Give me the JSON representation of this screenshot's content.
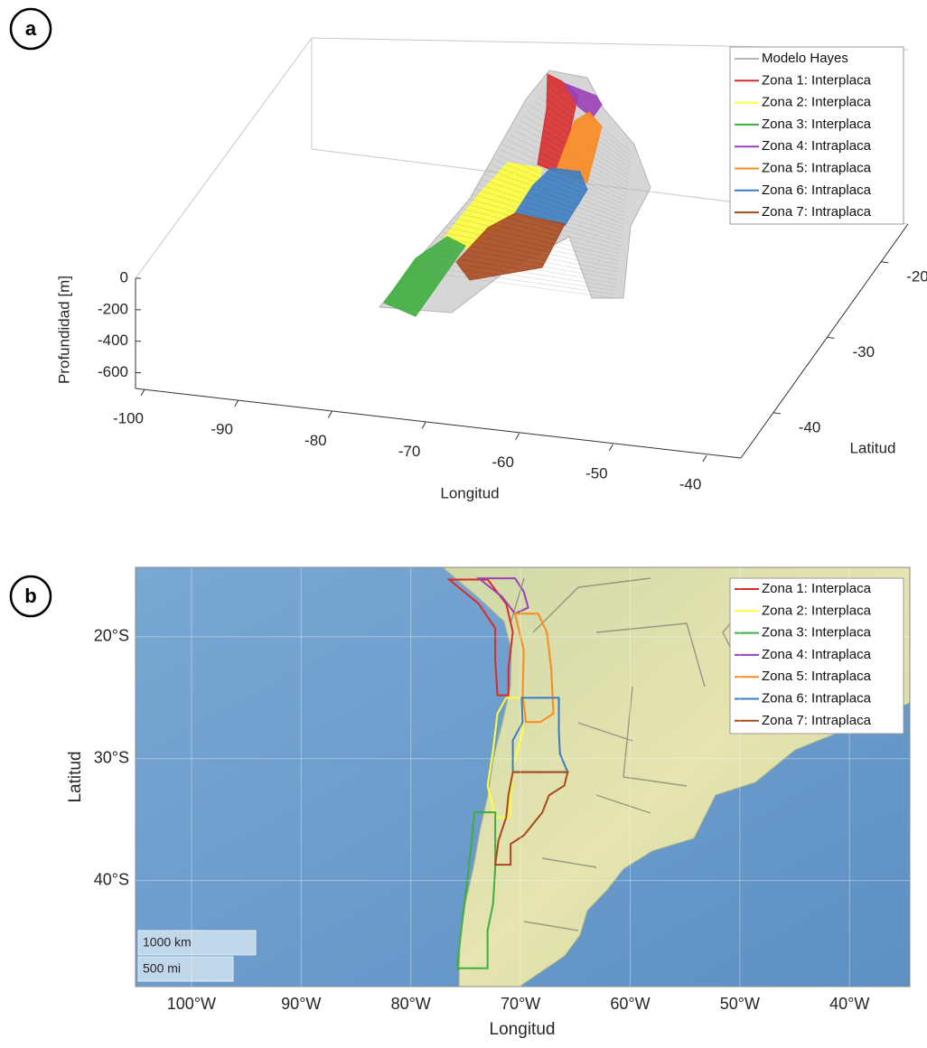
{
  "chart_data": [
    {
      "type": "surface3d",
      "panel": "a",
      "xlabel": "Longitud",
      "ylabel": "Latitud",
      "zlabel": "Profundidad [m]",
      "xlim": [
        -100,
        -40
      ],
      "xticks": [
        -100,
        -90,
        -80,
        -70,
        -60,
        -50,
        -40
      ],
      "ylim": [
        -46,
        -15
      ],
      "yticks": [
        -40,
        -30,
        -20
      ],
      "zlim": [
        -700,
        0
      ],
      "zticks": [
        0,
        -200,
        -400,
        -600
      ],
      "legend": "upper right",
      "series": [
        {
          "name": "Modelo Hayes",
          "color": "#b4b4b4"
        },
        {
          "name": "Zona 1: Interplaca",
          "color": "#d92b2b"
        },
        {
          "name": "Zona 2: Interplaca",
          "color": "#ffff3a"
        },
        {
          "name": "Zona 3: Interplaca",
          "color": "#3fae3f"
        },
        {
          "name": "Zona 4: Intraplaca",
          "color": "#9a40b8"
        },
        {
          "name": "Zona 5: Intraplaca",
          "color": "#ff8a1c"
        },
        {
          "name": "Zona 6: Intraplaca",
          "color": "#3a7cc2"
        },
        {
          "name": "Zona 7: Intraplaca",
          "color": "#a8481c"
        }
      ]
    },
    {
      "type": "map",
      "panel": "b",
      "xlabel": "Longitud",
      "ylabel": "Latitud",
      "xlim": [
        -105.1,
        -34.5
      ],
      "xticks": [
        {
          "value": -100,
          "label": "100°W"
        },
        {
          "value": -90,
          "label": "90°W"
        },
        {
          "value": -80,
          "label": "80°W"
        },
        {
          "value": -70,
          "label": "70°W"
        },
        {
          "value": -60,
          "label": "60°W"
        },
        {
          "value": -50,
          "label": "50°W"
        },
        {
          "value": -40,
          "label": "40°W"
        }
      ],
      "ylim": [
        -48.7,
        -14.3
      ],
      "yticks": [
        {
          "value": -20,
          "label": "20°S"
        },
        {
          "value": -30,
          "label": "30°S"
        },
        {
          "value": -40,
          "label": "40°S"
        }
      ],
      "grid": true,
      "legend": "upper right",
      "scale_bar": [
        "1000 km",
        "500 mi"
      ],
      "series": [
        {
          "name": "Zona 1: Interplaca",
          "color": "#d92b2b",
          "lon": [
            -76.5,
            -73.0,
            -71.3,
            -70.7,
            -71.1,
            -71.1,
            -72.1,
            -72.3,
            -72.3,
            -73.8
          ],
          "lat": [
            -15.3,
            -15.3,
            -17.3,
            -19.6,
            -22.6,
            -24.8,
            -24.8,
            -21.9,
            -19.3,
            -17.3
          ]
        },
        {
          "name": "Zona 2: Interplaca",
          "color": "#ffff3a",
          "lon": [
            -71.3,
            -69.7,
            -69.8,
            -70.7,
            -70.9,
            -70.9,
            -72.3,
            -73.0,
            -72.5,
            -72.1
          ],
          "lat": [
            -25.0,
            -25.0,
            -27.8,
            -30.7,
            -33.0,
            -34.8,
            -34.8,
            -32.2,
            -29.3,
            -26.3
          ]
        },
        {
          "name": "Zona 3: Interplaca",
          "color": "#3fae3f",
          "lon": [
            -74.2,
            -72.3,
            -72.3,
            -72.5,
            -73.0,
            -73.0,
            -75.8,
            -75.4,
            -75.0,
            -74.6
          ],
          "lat": [
            -34.4,
            -34.4,
            -38.9,
            -41.9,
            -44.1,
            -47.2,
            -47.2,
            -44.1,
            -41.1,
            -38.1
          ]
        },
        {
          "name": "Zona 4: Intraplaca",
          "color": "#9a40b8",
          "lon": [
            -73.8,
            -70.5,
            -69.7,
            -69.3,
            -70.5,
            -71.7
          ],
          "lat": [
            -15.2,
            -15.2,
            -16.3,
            -17.6,
            -18.1,
            -16.7
          ]
        },
        {
          "name": "Zona 5: Intraplaca",
          "color": "#ff8a1c",
          "lon": [
            -70.5,
            -68.4,
            -67.6,
            -67.2,
            -67.0,
            -68.2,
            -69.5,
            -69.8,
            -69.7
          ],
          "lat": [
            -18.1,
            -18.1,
            -19.6,
            -22.6,
            -26.3,
            -27.0,
            -27.0,
            -24.8,
            -21.1
          ]
        },
        {
          "name": "Zona 6: Intraplaca",
          "color": "#3a7cc2",
          "lon": [
            -69.9,
            -66.5,
            -66.5,
            -66.4,
            -65.7,
            -70.7,
            -70.7,
            -69.8
          ],
          "lat": [
            -25.0,
            -25.0,
            -27.8,
            -29.6,
            -31.1,
            -31.1,
            -28.5,
            -27.0
          ]
        },
        {
          "name": "Zona 7: Intraplaca",
          "color": "#a8481c",
          "lon": [
            -70.7,
            -65.7,
            -66.0,
            -67.4,
            -68.0,
            -69.7,
            -70.9,
            -70.9,
            -72.3,
            -72.0,
            -71.3,
            -71.1
          ],
          "lat": [
            -31.1,
            -31.1,
            -32.2,
            -33.0,
            -34.4,
            -36.3,
            -37.0,
            -38.7,
            -38.7,
            -36.7,
            -34.8,
            -33.0
          ]
        }
      ]
    }
  ]
}
